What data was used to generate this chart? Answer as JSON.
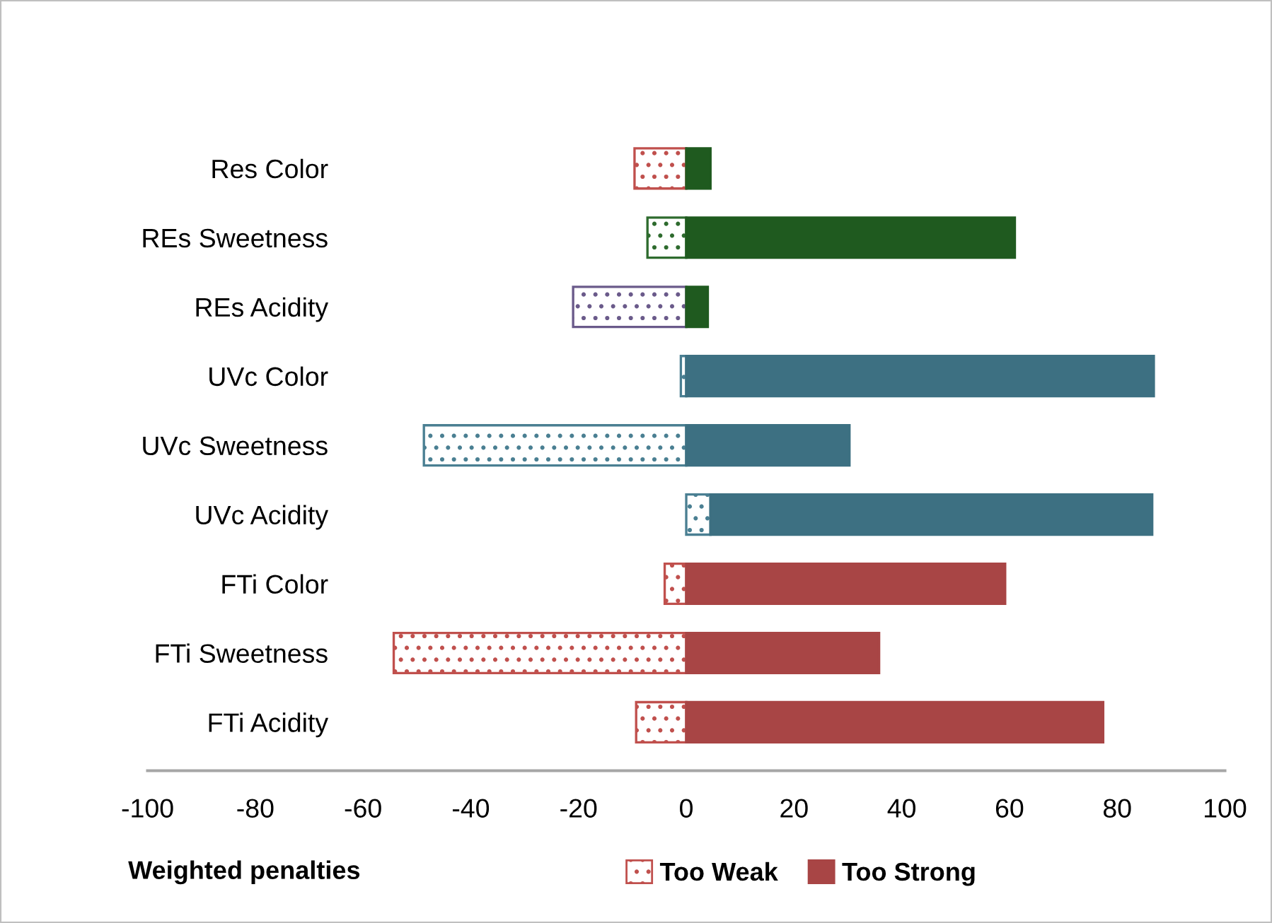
{
  "chart_data": {
    "type": "bar",
    "orientation": "horizontal",
    "stacked": true,
    "categories": [
      "Res Color",
      "REs Sweetness",
      "REs Acidity",
      "UVc Color",
      "UVc Sweetness",
      "UVc Acidity",
      "FTi Color",
      "FTi Sweetness",
      "FTi Acidity"
    ],
    "series": [
      {
        "name": "Too Weak",
        "color": "#c0504d",
        "colors": [
          "#c0504d",
          "#2e6b2e",
          "#6a5a8a",
          "#4a7f92",
          "#4a7f92",
          "#4a7f92",
          "#c0504d",
          "#c0504d",
          "#c0504d"
        ],
        "values": [
          -9.6,
          -7.2,
          -21,
          -1,
          -48.7,
          4.5,
          -4,
          -54.3,
          -9.3
        ]
      },
      {
        "name": "Too Strong",
        "color": "#a84545",
        "colors": [
          "#1f5a1f",
          "#1f5a1f",
          "#1f5a1f",
          "#3d7082",
          "#3d7082",
          "#3d7082",
          "#a84545",
          "#a84545",
          "#a84545"
        ],
        "values": [
          4.5,
          61,
          4,
          86.8,
          30.3,
          82,
          59.2,
          35.8,
          77.4
        ]
      }
    ],
    "xlim": [
      -100,
      100
    ],
    "xticks": [
      -100,
      -80,
      -60,
      -40,
      -20,
      0,
      20,
      40,
      60,
      80,
      100
    ],
    "xlabel": "Weighted penalties",
    "legend": "bottom",
    "grid": false
  }
}
